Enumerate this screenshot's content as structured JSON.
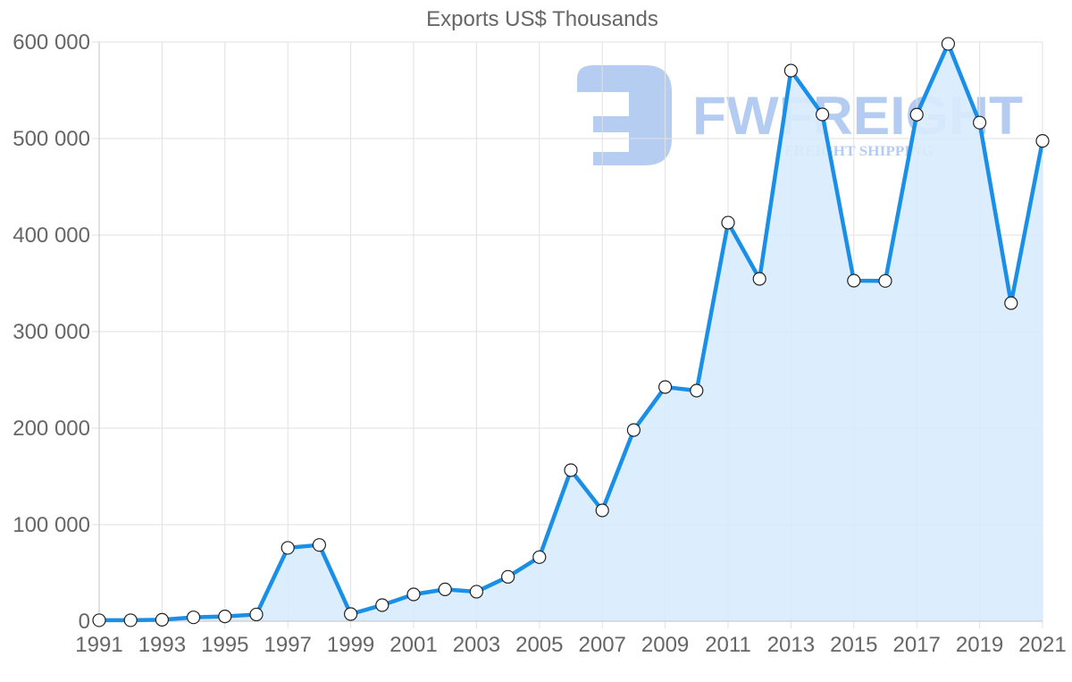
{
  "chart_data": {
    "type": "line",
    "title": "Exports US$ Thousands",
    "xlabel": "",
    "ylabel": "",
    "ylim": [
      0,
      600000
    ],
    "yticks": [
      0,
      100000,
      200000,
      300000,
      400000,
      500000,
      600000
    ],
    "ytick_labels": [
      "0",
      "100 000",
      "200 000",
      "300 000",
      "400 000",
      "500 000",
      "600 000"
    ],
    "x": [
      1991,
      1992,
      1993,
      1994,
      1995,
      1996,
      1997,
      1998,
      1999,
      2000,
      2001,
      2002,
      2003,
      2004,
      2005,
      2006,
      2007,
      2008,
      2009,
      2010,
      2011,
      2012,
      2013,
      2014,
      2015,
      2016,
      2017,
      2018,
      2019,
      2020,
      2021
    ],
    "xtick_labels": [
      "1991",
      "1993",
      "1995",
      "1997",
      "1999",
      "2001",
      "2003",
      "2005",
      "2007",
      "2009",
      "2011",
      "2013",
      "2015",
      "2017",
      "2019",
      "2021"
    ],
    "series": [
      {
        "name": "Exports US$ Thousands",
        "color": "#1a8fe8",
        "fill": "#d8ebfd",
        "values": [
          1000,
          1000,
          1500,
          4000,
          5000,
          7000,
          76000,
          79000,
          7400,
          16700,
          27800,
          33000,
          30600,
          46000,
          66400,
          156500,
          114800,
          198000,
          242600,
          238900,
          412900,
          354600,
          570400,
          525000,
          352800,
          352500,
          524800,
          598100,
          516500,
          329500,
          497600
        ]
      }
    ],
    "grid": true,
    "legend": "none",
    "fill_area": true,
    "markers": "white-circle"
  },
  "watermark": {
    "brand": "FWFREIGHT",
    "tagline": "FREIGHT SHIPPING",
    "color": "#a9c4f0"
  }
}
